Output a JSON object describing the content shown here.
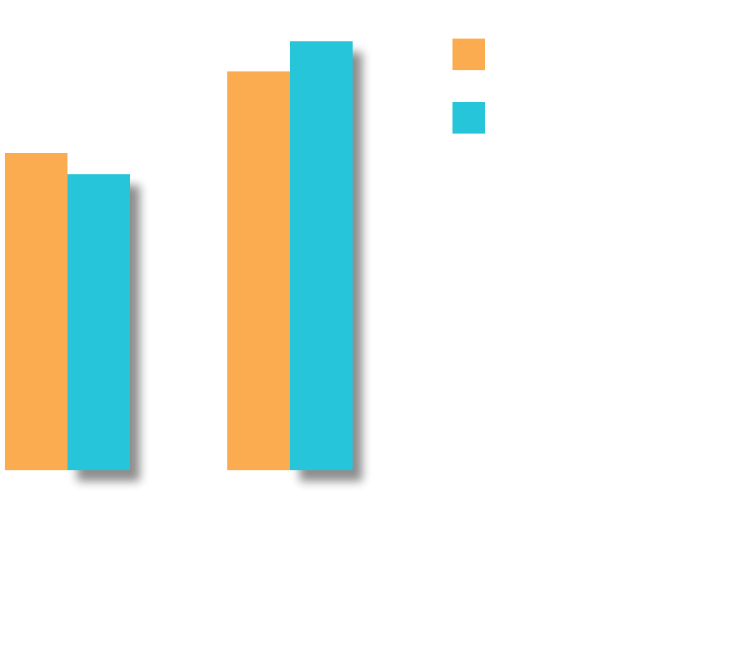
{
  "chart_data": {
    "type": "bar",
    "categories": [
      "",
      ""
    ],
    "series": [
      {
        "values": [
          0.74,
          0.93
        ],
        "color": "#FCAC50"
      },
      {
        "values": [
          0.69,
          1.0
        ],
        "color": "#26C5D9"
      }
    ],
    "ylim": [
      0,
      1
    ],
    "grid": false,
    "legend_position": "top-right",
    "shadow": true
  }
}
